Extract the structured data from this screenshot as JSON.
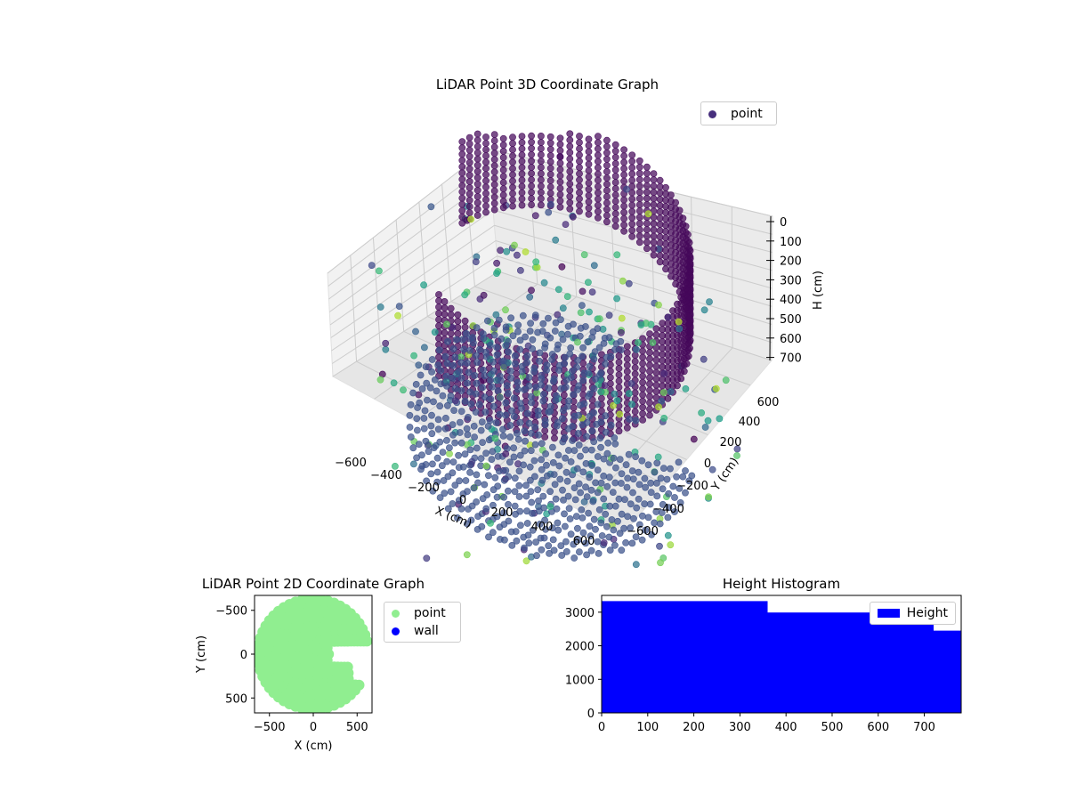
{
  "colors": {
    "point3d_legend": "#472f7d",
    "scatter2d_point": "#90ee90",
    "scatter2d_wall": "#0000ff",
    "histogram": "#0000ff",
    "pane": "#f2f2f2",
    "grid": "#cccccc"
  },
  "chart_data": [
    {
      "type": "scatter",
      "title": "LiDAR Point 3D Coordinate Graph",
      "xlabel": "X (cm)",
      "ylabel": "Y (cm)",
      "zlabel": "H (cm)",
      "x_ticks": [
        "−600",
        "−400",
        "−200",
        "0",
        "200",
        "400",
        "600"
      ],
      "y_ticks": [
        "−600",
        "−400",
        "−200",
        "0",
        "200",
        "400",
        "600"
      ],
      "z_ticks": [
        "0",
        "100",
        "200",
        "300",
        "400",
        "500",
        "600",
        "700"
      ],
      "xlim": [
        -700,
        700
      ],
      "ylim": [
        -700,
        700
      ],
      "zlim": [
        0,
        780
      ],
      "z_inverted": true,
      "colormap": "viridis",
      "grid": true,
      "legend_position": "top-right",
      "series": [
        {
          "name": "point",
          "description_points": [
            {
              "ring": "wall",
              "radius": 650,
              "h_range": [
                0,
                300
              ]
            },
            {
              "ring": "floor",
              "radius_range": [
                50,
                650
              ],
              "h": 700
            }
          ]
        }
      ]
    },
    {
      "type": "scatter",
      "title": "LiDAR Point 2D Coordinate Graph",
      "xlabel": "X (cm)",
      "ylabel": "Y (cm)",
      "x_ticks": [
        "−500",
        "0",
        "500"
      ],
      "y_ticks": [
        "−500",
        "0",
        "500"
      ],
      "xlim": [
        -670,
        670
      ],
      "ylim": [
        -670,
        670
      ],
      "legend_position": "outside-right",
      "series": [
        {
          "name": "point",
          "color": "#90ee90"
        },
        {
          "name": "wall",
          "color": "#0000ff"
        }
      ]
    },
    {
      "type": "bar",
      "title": "Height Histogram",
      "x_ticks": [
        "0",
        "100",
        "200",
        "300",
        "400",
        "500",
        "600",
        "700"
      ],
      "y_ticks": [
        "0",
        "1000",
        "2000",
        "3000"
      ],
      "xlim": [
        0,
        780
      ],
      "ylim": [
        0,
        3500
      ],
      "legend_position": "top-right",
      "series": [
        {
          "name": "Height",
          "bins": [
            {
              "x0": 0,
              "x1": 360,
              "count": 3330
            },
            {
              "x0": 360,
              "x1": 720,
              "count": 2990
            },
            {
              "x0": 720,
              "x1": 780,
              "count": 2450
            }
          ]
        }
      ]
    }
  ]
}
